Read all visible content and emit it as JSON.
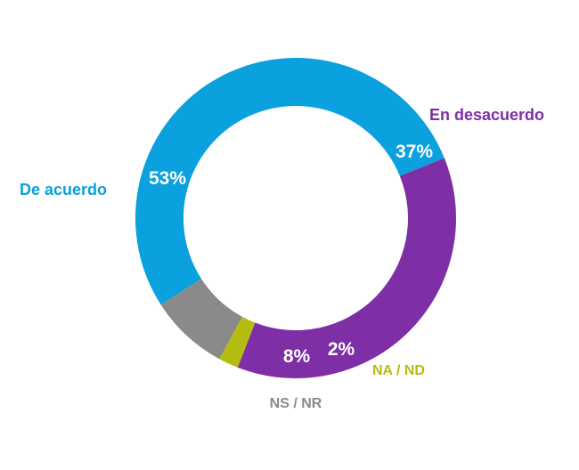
{
  "chart_data": {
    "type": "pie",
    "variant": "donut",
    "title": "",
    "slices": [
      {
        "name": "De acuerdo",
        "value": 53,
        "label": "53%",
        "color": "#0aa1de"
      },
      {
        "name": "NS / NR",
        "value": 8,
        "label": "8%",
        "color": "#8a8a8a"
      },
      {
        "name": "NA / ND",
        "value": 2,
        "label": "2%",
        "color": "#b4bd0f"
      },
      {
        "name": "En desacuerdo",
        "value": 37,
        "label": "37%",
        "color": "#7e2fa6"
      }
    ],
    "start_angle_deg": 22,
    "direction": "counterclockwise"
  }
}
